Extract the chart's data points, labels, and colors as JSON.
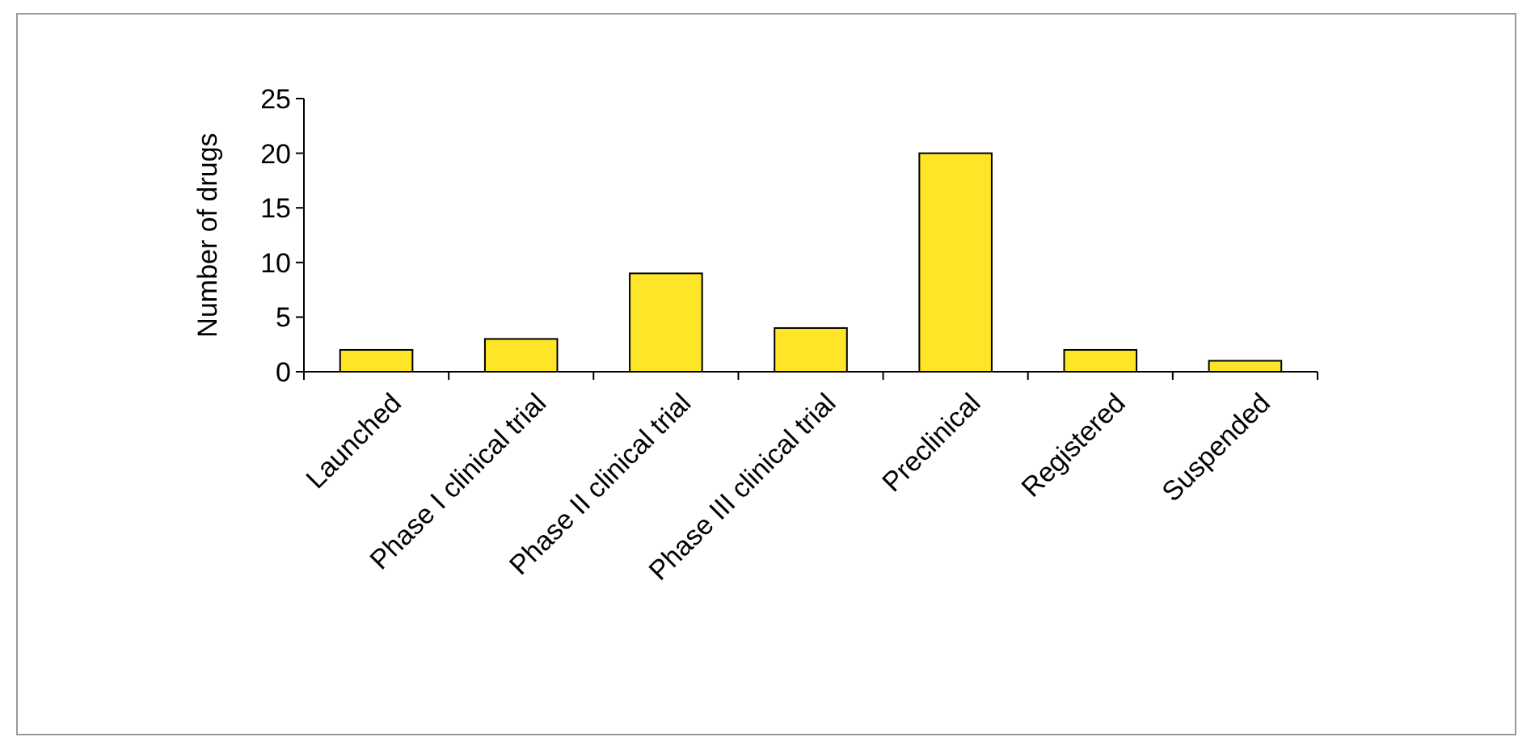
{
  "chart_data": {
    "type": "bar",
    "ylabel": "Number of drugs",
    "categories": [
      "Launched",
      "Phase I clinical trial",
      "Phase II clinical trial",
      "Phase III clinical trial",
      "Preclinical",
      "Registered",
      "Suspended"
    ],
    "values": [
      2,
      3,
      9,
      4,
      20,
      2,
      1
    ],
    "color": "#ffe528",
    "ylim": [
      0,
      25
    ],
    "yticks": [
      0,
      5,
      10,
      15,
      20,
      25
    ],
    "grid": false
  }
}
